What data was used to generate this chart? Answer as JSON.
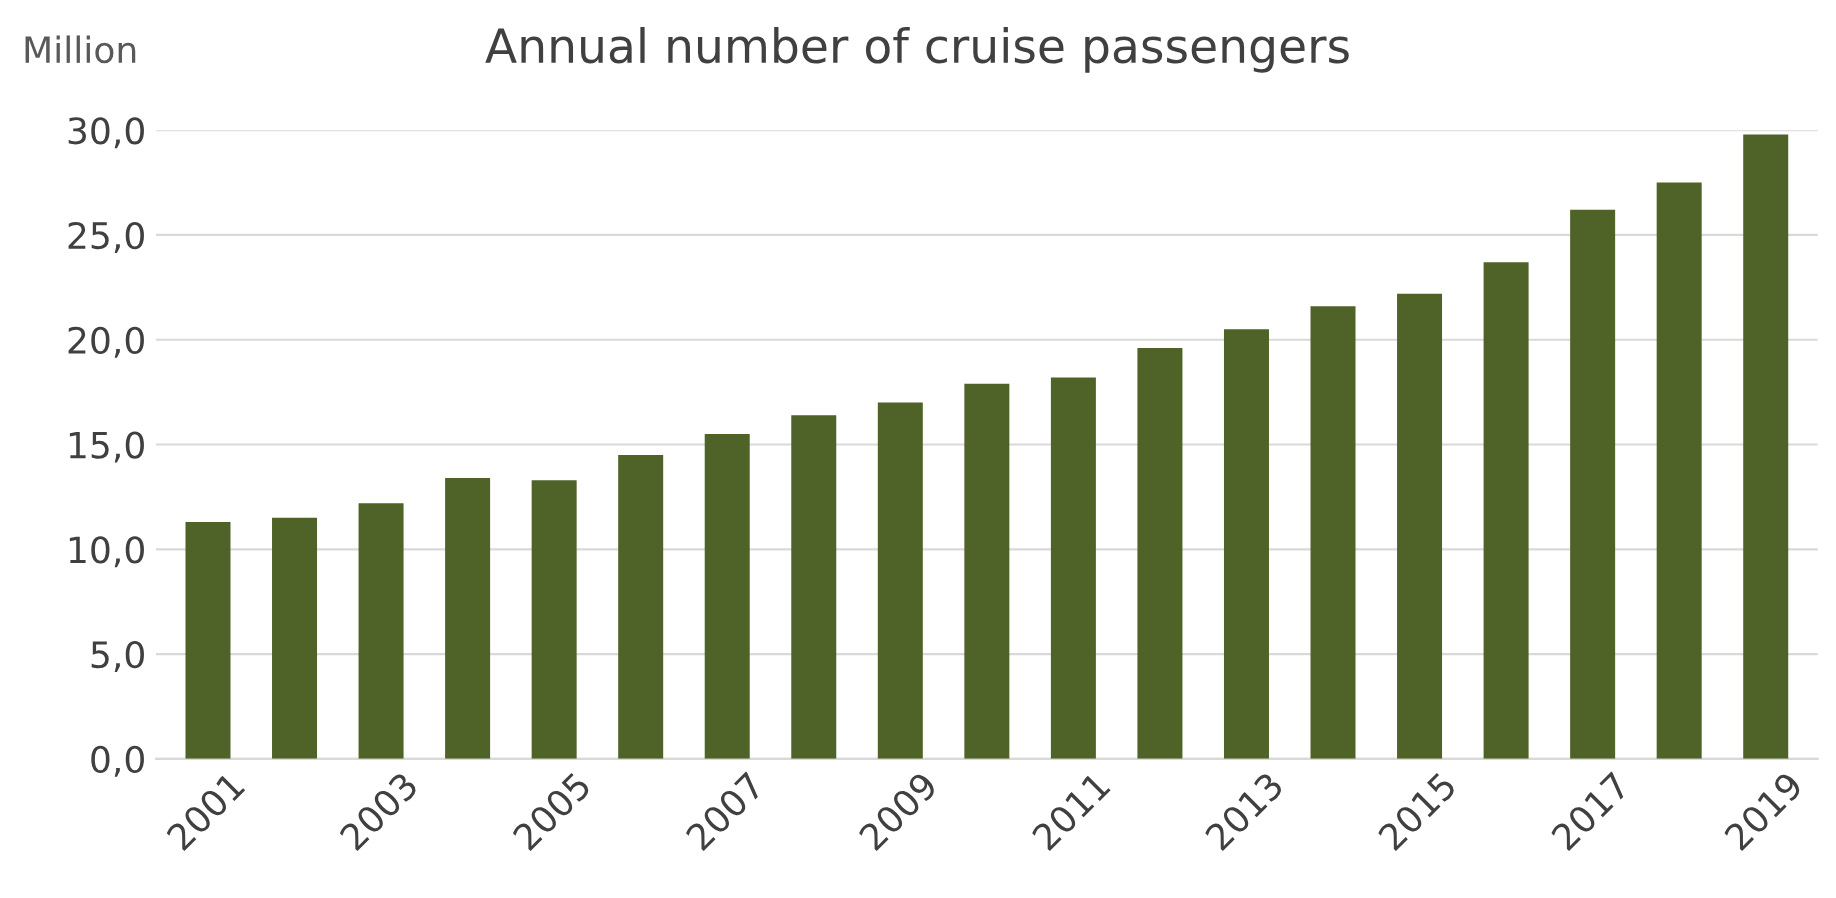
{
  "chart_data": {
    "type": "bar",
    "title": "Annual number of cruise passengers",
    "ylabel": "Million",
    "categories": [
      "2001",
      null,
      "2003",
      null,
      "2005",
      null,
      "2007",
      null,
      "2009",
      null,
      "2011",
      null,
      "2013",
      null,
      "2015",
      null,
      "2017",
      null,
      "2019"
    ],
    "values": [
      11.3,
      11.5,
      12.2,
      13.4,
      13.3,
      14.5,
      15.5,
      16.4,
      17.0,
      17.9,
      18.2,
      19.6,
      20.5,
      21.6,
      22.2,
      23.7,
      26.2,
      27.5,
      29.8
    ],
    "color": "#4f6228",
    "ylim": [
      0,
      30
    ],
    "yticks": [
      {
        "value": 0,
        "label": "0,0"
      },
      {
        "value": 5,
        "label": "5,0"
      },
      {
        "value": 10,
        "label": "10,0"
      },
      {
        "value": 15,
        "label": "15,0"
      },
      {
        "value": 20,
        "label": "20,0"
      },
      {
        "value": 25,
        "label": "25,0"
      },
      {
        "value": 30,
        "label": "30,0"
      }
    ],
    "grid": "y",
    "legend": false
  }
}
